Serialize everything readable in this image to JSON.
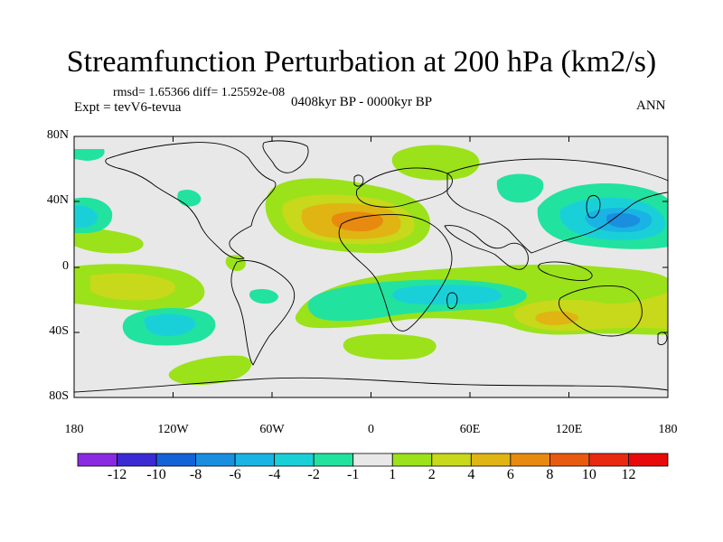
{
  "title": "Streamfunction Perturbation at 200 hPa (km2/s)",
  "stats": "rmsd= 1.65366 diff= 1.25592e-08",
  "experiment": "Expt = tevV6-tevua",
  "period": "0408kyr BP - 0000kyr BP",
  "season": "ANN",
  "lat_ticks": [
    "80N",
    "40N",
    "0",
    "40S",
    "80S"
  ],
  "lon_ticks": [
    "180",
    "120W",
    "60W",
    "0",
    "60E",
    "120E",
    "180"
  ],
  "colorbar": {
    "labels": [
      "-12",
      "-10",
      "-8",
      "-6",
      "-4",
      "-2",
      "-1",
      "1",
      "2",
      "4",
      "6",
      "8",
      "10",
      "12"
    ],
    "colors": [
      "#8a2be2",
      "#3a2ad4",
      "#1462d8",
      "#1a8fe0",
      "#19b4e4",
      "#1ad0d8",
      "#22e2a0",
      "#e8e8e8",
      "#9be21a",
      "#c8d81a",
      "#e0b412",
      "#e88a10",
      "#e85a10",
      "#e82a10",
      "#e80a0a"
    ]
  },
  "palette": {
    "neutral": "#e8e8e8",
    "pos_weak": "#9be21a",
    "pos_mid": "#c8d81a",
    "pos_strong": "#e0b412",
    "pos_max": "#e88a10",
    "neg_weak": "#22e2a0",
    "neg_mid": "#1ad0d8",
    "neg_strong": "#19b4e4",
    "neg_max": "#1a8fe0"
  }
}
